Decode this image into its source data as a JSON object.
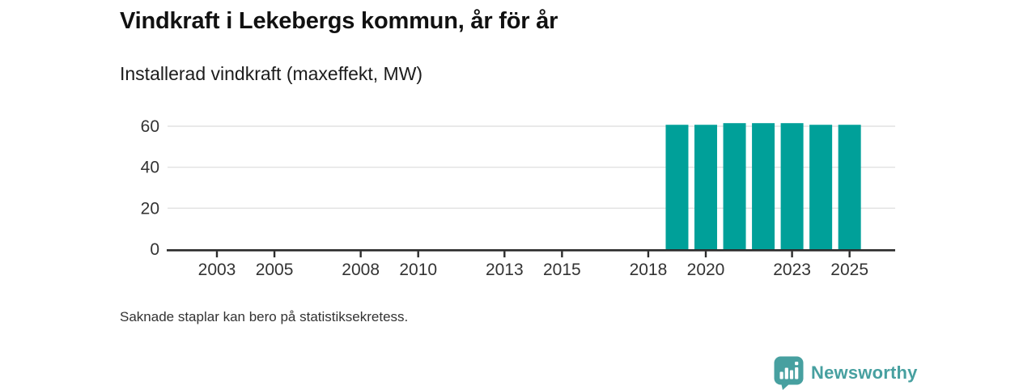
{
  "header": {
    "title": "Vindkraft i Lekebergs kommun, år för år",
    "subtitle": "Installerad vindkraft (maxeffekt, MW)"
  },
  "footnote": "Saknade staplar kan bero på statistiksekretess.",
  "branding": {
    "logo_text": "Newsworthy",
    "logo_color": "#47a0a0"
  },
  "chart_data": {
    "type": "bar",
    "title": "Vindkraft i Lekebergs kommun, år för år",
    "subtitle_as_ylabel": "Installerad vindkraft (maxeffekt, MW)",
    "xlabel": "",
    "ylabel": "MW",
    "x": [
      2019,
      2020,
      2021,
      2022,
      2023,
      2024,
      2025
    ],
    "values": [
      60.7,
      60.7,
      61.5,
      61.5,
      61.5,
      60.7,
      60.7
    ],
    "xticks": [
      2003,
      2005,
      2008,
      2010,
      2013,
      2015,
      2018,
      2020,
      2023,
      2025
    ],
    "yticks": [
      0,
      20,
      40,
      60
    ],
    "xlim": [
      2001.3,
      2026.6
    ],
    "ylim": [
      0,
      64
    ],
    "grid": true,
    "legend": false,
    "bar_color": "#00a099",
    "gridline_color": "#e2e2e2",
    "axis_color": "#2b2b2b",
    "label_color": "#333333",
    "note": "Bars only for 2019–2025; earlier years have no bars (missing data)."
  }
}
